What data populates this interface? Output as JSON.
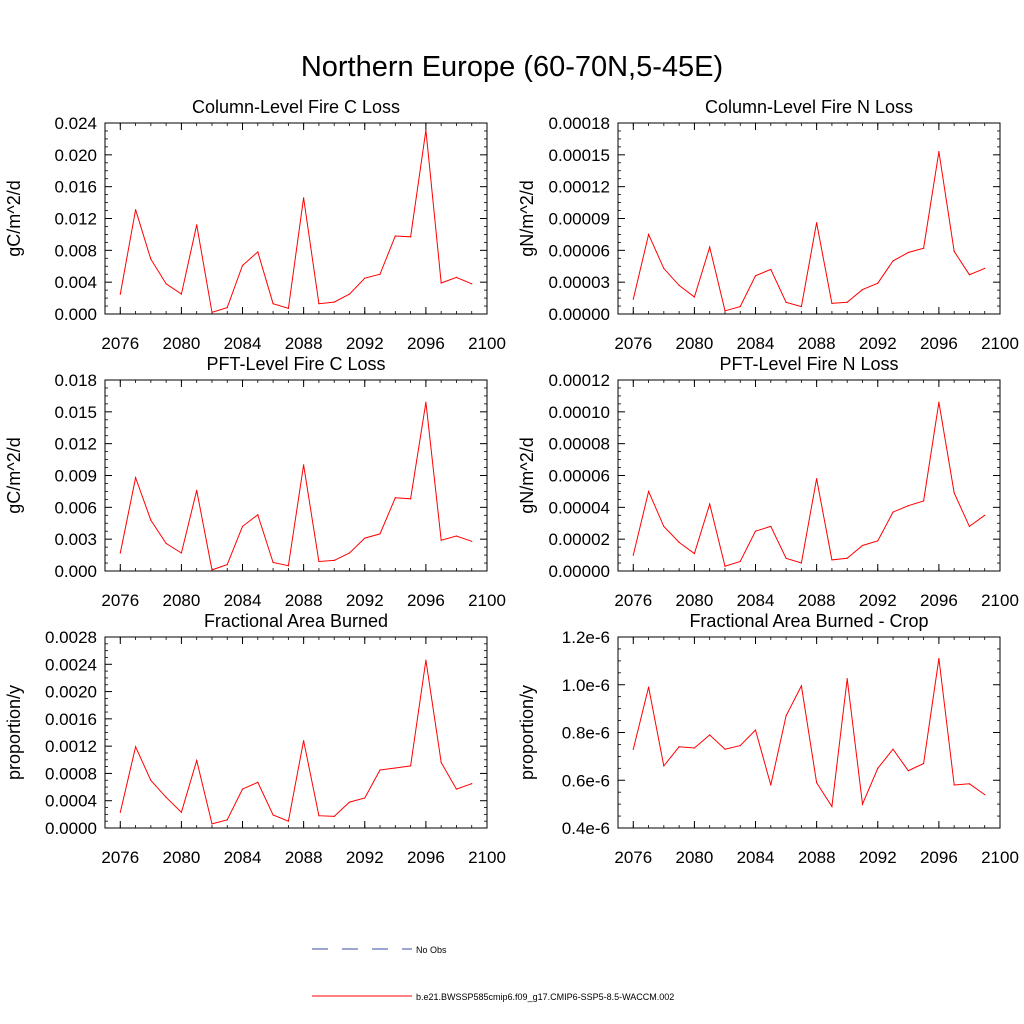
{
  "figure_title": "Northern Europe (60-70N,5-45E)",
  "chart_data": [
    {
      "type": "line",
      "title": "Column-Level Fire C Loss",
      "ylabel": "gC/m^2/d",
      "xlabel": "",
      "xlim": [
        2075,
        2100
      ],
      "ylim": [
        0,
        0.024
      ],
      "x_ticks": [
        2076,
        2080,
        2084,
        2088,
        2092,
        2096,
        2100
      ],
      "y_ticks": [
        0,
        0.004,
        0.008,
        0.012,
        0.016,
        0.02,
        0.024
      ],
      "y_tick_labels": [
        "0.000",
        "0.004",
        "0.008",
        "0.012",
        "0.016",
        "0.020",
        "0.024"
      ],
      "x": [
        2076,
        2077,
        2078,
        2079,
        2080,
        2081,
        2082,
        2083,
        2084,
        2085,
        2086,
        2087,
        2088,
        2089,
        2090,
        2091,
        2092,
        2093,
        2094,
        2095,
        2096,
        2097,
        2098,
        2099
      ],
      "values": [
        0.0025,
        0.0131,
        0.0069,
        0.0038,
        0.0025,
        0.0112,
        0.0002,
        0.0008,
        0.0061,
        0.0078,
        0.0013,
        0.0007,
        0.0146,
        0.0013,
        0.0015,
        0.0025,
        0.0045,
        0.005,
        0.0098,
        0.0097,
        0.0231,
        0.0039,
        0.0046,
        0.0038
      ]
    },
    {
      "type": "line",
      "title": "Column-Level Fire N Loss",
      "ylabel": "gN/m^2/d",
      "xlabel": "",
      "xlim": [
        2075,
        2100
      ],
      "ylim": [
        0,
        0.00018
      ],
      "x_ticks": [
        2076,
        2080,
        2084,
        2088,
        2092,
        2096,
        2100
      ],
      "y_ticks": [
        0,
        3e-05,
        6e-05,
        9e-05,
        0.00012,
        0.00015,
        0.00018
      ],
      "y_tick_labels": [
        "0.00000",
        "0.00003",
        "0.00006",
        "0.00009",
        "0.00012",
        "0.00015",
        "0.00018"
      ],
      "x": [
        2076,
        2077,
        2078,
        2079,
        2080,
        2081,
        2082,
        2083,
        2084,
        2085,
        2086,
        2087,
        2088,
        2089,
        2090,
        2091,
        2092,
        2093,
        2094,
        2095,
        2096,
        2097,
        2098,
        2099
      ],
      "values": [
        1.4e-05,
        7.5e-05,
        4.3e-05,
        2.7e-05,
        1.6e-05,
        6.3e-05,
        3e-06,
        7e-06,
        3.6e-05,
        4.2e-05,
        1.1e-05,
        7e-06,
        8.6e-05,
        1e-05,
        1.1e-05,
        2.3e-05,
        2.9e-05,
        5e-05,
        5.8e-05,
        6.2e-05,
        0.000153,
        5.9e-05,
        3.7e-05,
        4.3e-05
      ]
    },
    {
      "type": "line",
      "title": "PFT-Level Fire C Loss",
      "ylabel": "gC/m^2/d",
      "xlabel": "",
      "xlim": [
        2075,
        2100
      ],
      "ylim": [
        0,
        0.018
      ],
      "x_ticks": [
        2076,
        2080,
        2084,
        2088,
        2092,
        2096,
        2100
      ],
      "y_ticks": [
        0,
        0.003,
        0.006,
        0.009,
        0.012,
        0.015,
        0.018
      ],
      "y_tick_labels": [
        "0.000",
        "0.003",
        "0.006",
        "0.009",
        "0.012",
        "0.015",
        "0.018"
      ],
      "x": [
        2076,
        2077,
        2078,
        2079,
        2080,
        2081,
        2082,
        2083,
        2084,
        2085,
        2086,
        2087,
        2088,
        2089,
        2090,
        2091,
        2092,
        2093,
        2094,
        2095,
        2096,
        2097,
        2098,
        2099
      ],
      "values": [
        0.0017,
        0.0088,
        0.0048,
        0.0026,
        0.0017,
        0.0076,
        0.0001,
        0.0006,
        0.0042,
        0.0053,
        0.0008,
        0.0005,
        0.01,
        0.0009,
        0.001,
        0.0017,
        0.0031,
        0.0035,
        0.0069,
        0.0068,
        0.0159,
        0.0029,
        0.0033,
        0.0028
      ]
    },
    {
      "type": "line",
      "title": "PFT-Level Fire N Loss",
      "ylabel": "gN/m^2/d",
      "xlabel": "",
      "xlim": [
        2075,
        2100
      ],
      "ylim": [
        0,
        0.00012
      ],
      "x_ticks": [
        2076,
        2080,
        2084,
        2088,
        2092,
        2096,
        2100
      ],
      "y_ticks": [
        0,
        2e-05,
        4e-05,
        6e-05,
        8e-05,
        0.0001,
        0.00012
      ],
      "y_tick_labels": [
        "0.00000",
        "0.00002",
        "0.00004",
        "0.00006",
        "0.00008",
        "0.00010",
        "0.00012"
      ],
      "x": [
        2076,
        2077,
        2078,
        2079,
        2080,
        2081,
        2082,
        2083,
        2084,
        2085,
        2086,
        2087,
        2088,
        2089,
        2090,
        2091,
        2092,
        2093,
        2094,
        2095,
        2096,
        2097,
        2098,
        2099
      ],
      "values": [
        1e-05,
        5e-05,
        2.8e-05,
        1.8e-05,
        1.1e-05,
        4.2e-05,
        3e-06,
        6e-06,
        2.5e-05,
        2.8e-05,
        8e-06,
        5e-06,
        5.8e-05,
        7e-06,
        8e-06,
        1.6e-05,
        1.9e-05,
        3.7e-05,
        4.1e-05,
        4.4e-05,
        0.000106,
        4.9e-05,
        2.8e-05,
        3.5e-05
      ]
    },
    {
      "type": "line",
      "title": "Fractional Area Burned",
      "ylabel": "proportion/y",
      "xlabel": "",
      "xlim": [
        2075,
        2100
      ],
      "ylim": [
        0,
        0.0028
      ],
      "x_ticks": [
        2076,
        2080,
        2084,
        2088,
        2092,
        2096,
        2100
      ],
      "y_ticks": [
        0,
        0.0004,
        0.0008,
        0.0012,
        0.0016,
        0.002,
        0.0024,
        0.0028
      ],
      "y_tick_labels": [
        "0.0000",
        "0.0004",
        "0.0008",
        "0.0012",
        "0.0016",
        "0.0020",
        "0.0024",
        "0.0028"
      ],
      "x": [
        2076,
        2077,
        2078,
        2079,
        2080,
        2081,
        2082,
        2083,
        2084,
        2085,
        2086,
        2087,
        2088,
        2089,
        2090,
        2091,
        2092,
        2093,
        2094,
        2095,
        2096,
        2097,
        2098,
        2099
      ],
      "values": [
        0.00023,
        0.00119,
        0.0007,
        0.00045,
        0.00023,
        0.00099,
        6e-05,
        0.00012,
        0.00057,
        0.00067,
        0.00019,
        0.0001,
        0.00128,
        0.00018,
        0.00017,
        0.00038,
        0.00044,
        0.00085,
        0.00088,
        0.00091,
        0.00246,
        0.00096,
        0.00057,
        0.00065
      ]
    },
    {
      "type": "line",
      "title": "Fractional Area Burned - Crop",
      "ylabel": "proportion/y",
      "xlabel": "",
      "xlim": [
        2075,
        2100
      ],
      "ylim": [
        4e-07,
        1.2e-06
      ],
      "x_ticks": [
        2076,
        2080,
        2084,
        2088,
        2092,
        2096,
        2100
      ],
      "y_ticks": [
        4e-07,
        6e-07,
        8e-07,
        1e-06,
        1.2e-06
      ],
      "y_tick_labels": [
        "0.4e-6",
        "0.6e-6",
        "0.8e-6",
        "1.0e-6",
        "1.2e-6"
      ],
      "x": [
        2076,
        2077,
        2078,
        2079,
        2080,
        2081,
        2082,
        2083,
        2084,
        2085,
        2086,
        2087,
        2088,
        2089,
        2090,
        2091,
        2092,
        2093,
        2094,
        2095,
        2096,
        2097,
        2098,
        2099
      ],
      "values": [
        7.3e-07,
        9.9e-07,
        6.6e-07,
        7.4e-07,
        7.35e-07,
        7.9e-07,
        7.3e-07,
        7.45e-07,
        8.1e-07,
        5.8e-07,
        8.7e-07,
        9.95e-07,
        5.9e-07,
        4.9e-07,
        1.025e-06,
        5e-07,
        6.5e-07,
        7.3e-07,
        6.4e-07,
        6.7e-07,
        1.11e-06,
        5.8e-07,
        5.85e-07,
        5.4e-07
      ]
    }
  ],
  "legend": {
    "items": [
      {
        "label": "No Obs",
        "color": "#3b4ba3",
        "style": "dashed"
      },
      {
        "label": "b.e21.BWSSP585cmip6.f09_g17.CMIP6-SSP5-8.5-WACCM.002",
        "color": "#ff0000",
        "style": "solid"
      }
    ]
  },
  "colors": {
    "series": "#ff0000",
    "axis": "#000000"
  }
}
